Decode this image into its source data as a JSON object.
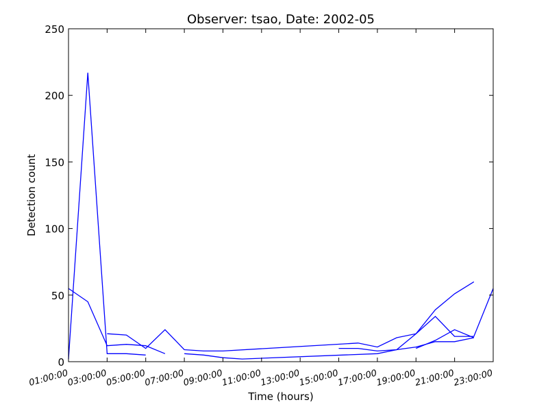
{
  "chart_data": {
    "type": "line",
    "title": "Observer: tsao, Date: 2002-05",
    "xlabel": "Time (hours)",
    "ylabel": "Detection count",
    "xlim": [
      1,
      23
    ],
    "ylim": [
      0,
      250
    ],
    "x_tick_values": [
      1,
      3,
      5,
      7,
      9,
      11,
      13,
      15,
      17,
      19,
      21,
      23
    ],
    "x_tick_labels": [
      "01:00:00",
      "03:00:00",
      "05:00:00",
      "07:00:00",
      "09:00:00",
      "11:00:00",
      "13:00:00",
      "15:00:00",
      "17:00:00",
      "19:00:00",
      "21:00:00",
      "23:00:00"
    ],
    "y_ticks": [
      0,
      50,
      100,
      150,
      200,
      250
    ],
    "grid": false,
    "line_color": "#0000ff",
    "series": [
      {
        "points": [
          [
            1,
            2
          ],
          [
            2,
            217
          ],
          [
            3,
            6
          ],
          [
            4,
            6
          ],
          [
            5,
            5
          ]
        ]
      },
      {
        "points": [
          [
            1,
            55
          ],
          [
            2,
            45
          ],
          [
            3,
            12
          ],
          [
            4,
            13
          ],
          [
            5,
            12
          ],
          [
            6,
            6
          ]
        ]
      },
      {
        "points": [
          [
            3,
            21
          ],
          [
            4,
            20
          ],
          [
            5,
            10
          ],
          [
            6,
            24
          ],
          [
            7,
            9
          ],
          [
            8,
            8
          ],
          [
            9,
            8
          ],
          [
            16,
            14
          ],
          [
            17,
            11
          ],
          [
            18,
            18
          ],
          [
            19,
            21
          ],
          [
            20,
            39
          ],
          [
            21,
            51
          ],
          [
            22,
            60
          ]
        ]
      },
      {
        "points": [
          [
            7,
            6
          ],
          [
            8,
            5
          ],
          [
            9,
            3
          ],
          [
            10,
            2
          ],
          [
            17,
            6
          ],
          [
            18,
            9
          ],
          [
            19,
            11
          ],
          [
            20,
            15
          ],
          [
            21,
            15
          ],
          [
            22,
            18
          ]
        ]
      },
      {
        "points": [
          [
            15,
            10
          ],
          [
            16,
            10
          ],
          [
            17,
            8
          ],
          [
            18,
            9
          ],
          [
            19,
            21
          ],
          [
            20,
            34
          ],
          [
            21,
            19
          ],
          [
            22,
            19
          ],
          [
            23,
            55
          ]
        ]
      },
      {
        "points": [
          [
            19,
            10
          ],
          [
            20,
            16
          ],
          [
            21,
            24
          ],
          [
            22,
            18
          ]
        ]
      }
    ]
  }
}
